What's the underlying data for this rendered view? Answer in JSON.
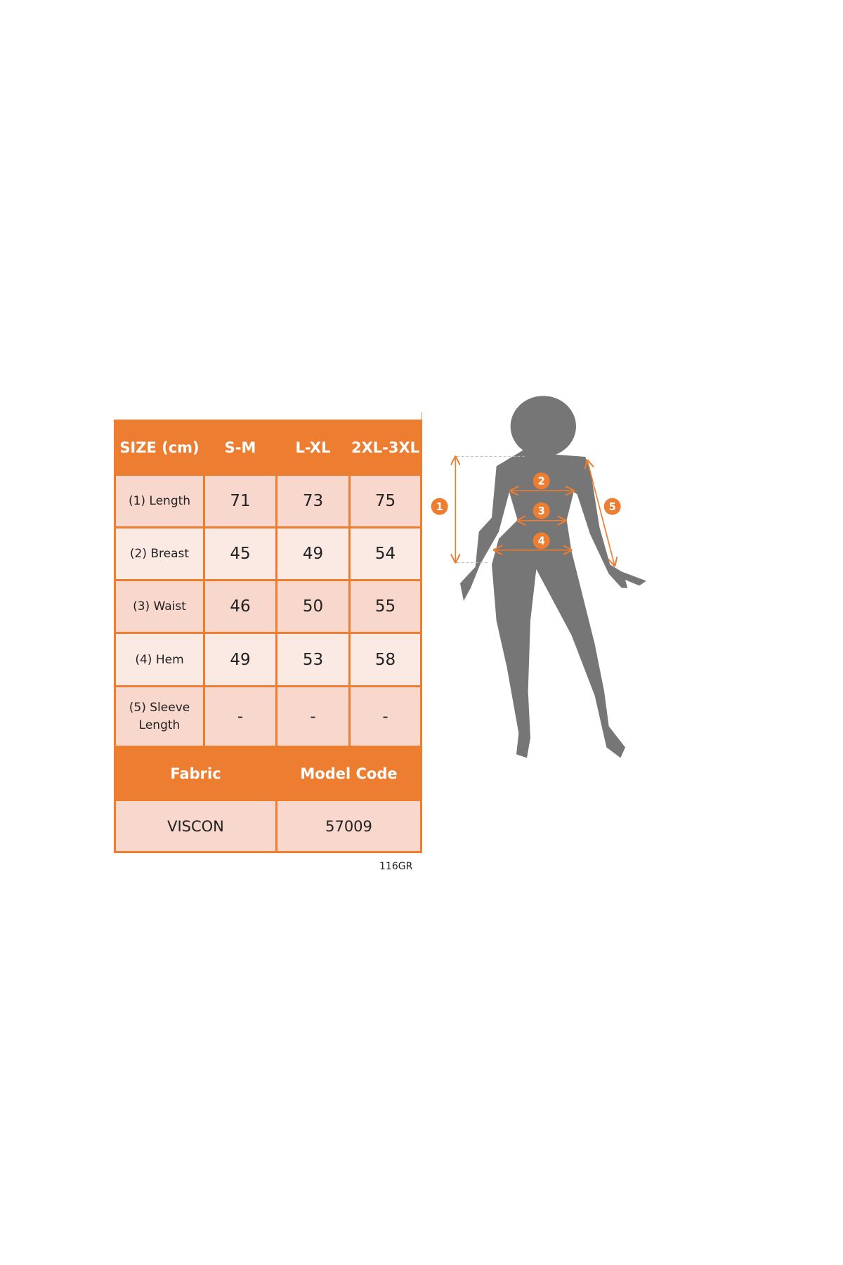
{
  "colors": {
    "accent": "#ed7d31",
    "silhouette": "#767676",
    "row_dark": "#f8d7cc",
    "row_light": "#fbe9e3"
  },
  "table": {
    "header": [
      "SIZE (cm)",
      "S-M",
      "L-XL",
      "2XL-3XL"
    ],
    "rows": [
      {
        "label": "(1) Length",
        "values": [
          "71",
          "73",
          "75"
        ]
      },
      {
        "label": "(2) Breast",
        "values": [
          "45",
          "49",
          "54"
        ]
      },
      {
        "label": "(3) Waist",
        "values": [
          "46",
          "50",
          "55"
        ]
      },
      {
        "label": "(4) Hem",
        "values": [
          "49",
          "53",
          "58"
        ]
      },
      {
        "label": "(5) Sleeve Length",
        "values": [
          "-",
          "-",
          "-"
        ]
      }
    ],
    "info_header": [
      "Fabric",
      "Model Code"
    ],
    "info_values": [
      "VISCON",
      "57009"
    ]
  },
  "footer_code": "116GR",
  "figure": {
    "markers": [
      "1",
      "2",
      "3",
      "4",
      "5"
    ]
  }
}
